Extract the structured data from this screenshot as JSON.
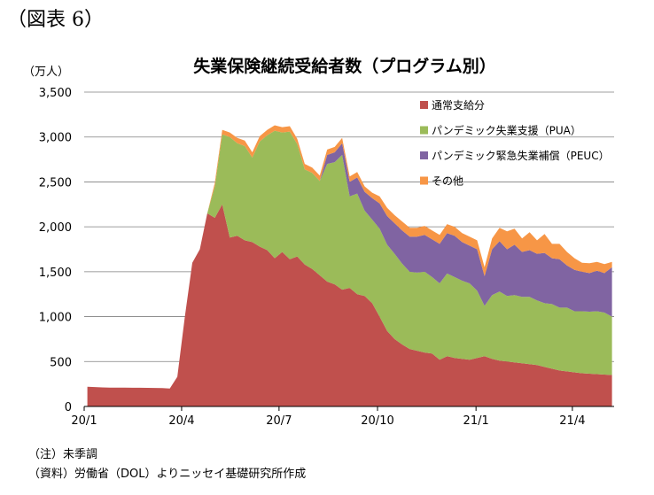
{
  "figure_label": "（図表 6）",
  "notes": [
    "（注）未季調",
    "（資料）労働省（DOL）よりニッセイ基礎研究所作成"
  ],
  "colors": {
    "regular": "#c0504d",
    "pua": "#9bbb59",
    "peuc": "#8064a2",
    "other": "#f79646"
  },
  "chart_data": {
    "type": "area",
    "stacked": true,
    "title": "失業保険継続受給者数（プログラム別）",
    "ylabel": "（万人）",
    "xlabel": "",
    "ylim": [
      0,
      3500
    ],
    "yticks": [
      "0",
      "500",
      "1,000",
      "1,500",
      "2,000",
      "2,500",
      "3,000",
      "3,500"
    ],
    "xticks": [
      "20/1",
      "20/4",
      "20/7",
      "20/10",
      "21/1",
      "21/4"
    ],
    "grid": true,
    "legend_position": "right",
    "x": [
      "2020-01-04",
      "2020-01-11",
      "2020-01-18",
      "2020-01-25",
      "2020-02-01",
      "2020-02-08",
      "2020-02-15",
      "2020-02-22",
      "2020-02-29",
      "2020-03-07",
      "2020-03-14",
      "2020-03-21",
      "2020-03-28",
      "2020-04-04",
      "2020-04-11",
      "2020-04-18",
      "2020-04-25",
      "2020-05-02",
      "2020-05-09",
      "2020-05-16",
      "2020-05-23",
      "2020-05-30",
      "2020-06-06",
      "2020-06-13",
      "2020-06-20",
      "2020-06-27",
      "2020-07-04",
      "2020-07-11",
      "2020-07-18",
      "2020-07-25",
      "2020-08-01",
      "2020-08-08",
      "2020-08-15",
      "2020-08-22",
      "2020-08-29",
      "2020-09-05",
      "2020-09-12",
      "2020-09-19",
      "2020-09-26",
      "2020-10-03",
      "2020-10-10",
      "2020-10-17",
      "2020-10-24",
      "2020-10-31",
      "2020-11-07",
      "2020-11-14",
      "2020-11-21",
      "2020-11-28",
      "2020-12-05",
      "2020-12-12",
      "2020-12-19",
      "2020-12-26",
      "2021-01-02",
      "2021-01-09",
      "2021-01-16",
      "2021-01-23",
      "2021-01-30",
      "2021-02-06",
      "2021-02-13",
      "2021-02-20",
      "2021-02-27",
      "2021-03-06",
      "2021-03-13",
      "2021-03-20",
      "2021-03-27",
      "2021-04-03",
      "2021-04-10",
      "2021-04-17",
      "2021-04-24",
      "2021-05-01",
      "2021-05-08"
    ],
    "series": [
      {
        "name": "通常支給分",
        "values": [
          220,
          216,
          212,
          210,
          210,
          209,
          208,
          208,
          207,
          206,
          205,
          200,
          330,
          1000,
          1600,
          1750,
          2150,
          2100,
          2250,
          1880,
          1900,
          1850,
          1830,
          1780,
          1740,
          1650,
          1720,
          1640,
          1670,
          1580,
          1530,
          1460,
          1390,
          1360,
          1300,
          1320,
          1250,
          1230,
          1150,
          1000,
          840,
          750,
          690,
          640,
          620,
          600,
          590,
          520,
          560,
          540,
          530,
          520,
          540,
          560,
          530,
          510,
          500,
          490,
          480,
          470,
          460,
          440,
          420,
          400,
          390,
          380,
          370,
          365,
          360,
          355,
          350
        ]
      },
      {
        "name": "パンデミック失業支援（PUA）",
        "values": [
          0,
          0,
          0,
          0,
          0,
          0,
          0,
          0,
          0,
          0,
          0,
          0,
          0,
          0,
          0,
          0,
          0,
          350,
          780,
          1120,
          1030,
          1050,
          940,
          1170,
          1280,
          1420,
          1330,
          1420,
          1250,
          1060,
          1070,
          1050,
          1310,
          1360,
          1500,
          1020,
          1120,
          950,
          930,
          980,
          960,
          950,
          900,
          860,
          870,
          900,
          850,
          850,
          920,
          900,
          870,
          850,
          750,
          560,
          710,
          770,
          730,
          750,
          740,
          750,
          720,
          710,
          720,
          700,
          710,
          680,
          690,
          690,
          700,
          690,
          650
        ]
      },
      {
        "name": "パンデミック緊急失業補償（PEUC）",
        "values": [
          0,
          0,
          0,
          0,
          0,
          0,
          0,
          0,
          0,
          0,
          0,
          0,
          0,
          0,
          0,
          0,
          0,
          0,
          0,
          0,
          0,
          0,
          0,
          0,
          0,
          0,
          0,
          0,
          0,
          0,
          0,
          0,
          100,
          110,
          130,
          160,
          180,
          210,
          240,
          280,
          320,
          340,
          370,
          390,
          400,
          410,
          420,
          440,
          450,
          460,
          430,
          420,
          460,
          330,
          510,
          560,
          520,
          560,
          500,
          520,
          520,
          560,
          510,
          540,
          470,
          460,
          440,
          430,
          450,
          440,
          550
        ]
      },
      {
        "name": "その他",
        "values": [
          0,
          0,
          0,
          0,
          0,
          0,
          0,
          0,
          0,
          0,
          0,
          0,
          0,
          0,
          0,
          0,
          0,
          40,
          50,
          50,
          60,
          60,
          60,
          60,
          60,
          60,
          60,
          60,
          60,
          60,
          60,
          60,
          60,
          60,
          60,
          60,
          60,
          60,
          60,
          80,
          90,
          90,
          100,
          100,
          100,
          100,
          100,
          100,
          100,
          100,
          100,
          100,
          100,
          100,
          120,
          150,
          200,
          180,
          150,
          200,
          150,
          210,
          160,
          170,
          150,
          130,
          100,
          110,
          100,
          100,
          60
        ]
      }
    ]
  }
}
